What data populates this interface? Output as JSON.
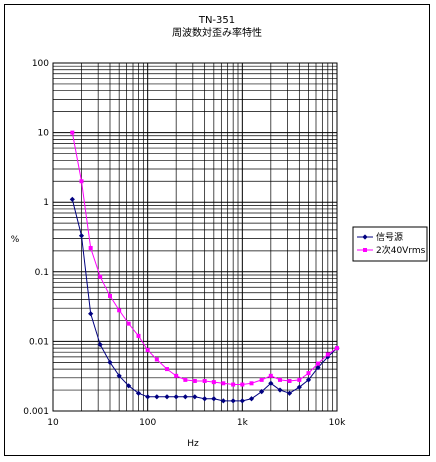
{
  "chart_data": {
    "type": "line",
    "title": "TN-351",
    "subtitle": "周波数対歪み率特性",
    "xlabel": "Hz",
    "ylabel": "%",
    "x_scale": "log",
    "y_scale": "log",
    "xlim": [
      10,
      10000
    ],
    "ylim": [
      0.001,
      100
    ],
    "x_tick_labels": [
      "10",
      "100",
      "1k",
      "10k"
    ],
    "y_tick_labels": [
      "0.001",
      "0.01",
      "0.1",
      "1",
      "10",
      "100"
    ],
    "x_tick_values": [
      10,
      100,
      1000,
      10000
    ],
    "y_tick_values": [
      0.001,
      0.01,
      0.1,
      1,
      10,
      100
    ],
    "grid": true,
    "legend_position": "right",
    "series": [
      {
        "name": "信号源",
        "color": "#000080",
        "marker": "diamond",
        "x": [
          16,
          20,
          25,
          31.5,
          40,
          50,
          63,
          80,
          100,
          125,
          160,
          200,
          250,
          315,
          400,
          500,
          630,
          800,
          1000,
          1250,
          1600,
          2000,
          2500,
          3150,
          4000,
          5000,
          6300,
          8000,
          10000
        ],
        "y": [
          1.1,
          0.33,
          0.025,
          0.009,
          0.005,
          0.0032,
          0.0023,
          0.0018,
          0.0016,
          0.0016,
          0.0016,
          0.0016,
          0.0016,
          0.0016,
          0.0015,
          0.0015,
          0.0014,
          0.0014,
          0.0014,
          0.0015,
          0.0019,
          0.0025,
          0.002,
          0.0018,
          0.0022,
          0.0028,
          0.0042,
          0.006,
          0.008
        ]
      },
      {
        "name": "2次40Vrms",
        "color": "#ff00ff",
        "marker": "square",
        "x": [
          16,
          20,
          25,
          31.5,
          40,
          50,
          63,
          80,
          100,
          125,
          160,
          200,
          250,
          315,
          400,
          500,
          630,
          800,
          1000,
          1250,
          1600,
          2000,
          2500,
          3150,
          4000,
          5000,
          6300,
          8000,
          10000
        ],
        "y": [
          10,
          2,
          0.22,
          0.085,
          0.045,
          0.028,
          0.018,
          0.012,
          0.0075,
          0.0055,
          0.004,
          0.0032,
          0.0028,
          0.0027,
          0.0027,
          0.0026,
          0.0025,
          0.0024,
          0.0024,
          0.0025,
          0.0028,
          0.0032,
          0.0028,
          0.0027,
          0.0028,
          0.0035,
          0.0048,
          0.0065,
          0.008
        ]
      }
    ]
  }
}
